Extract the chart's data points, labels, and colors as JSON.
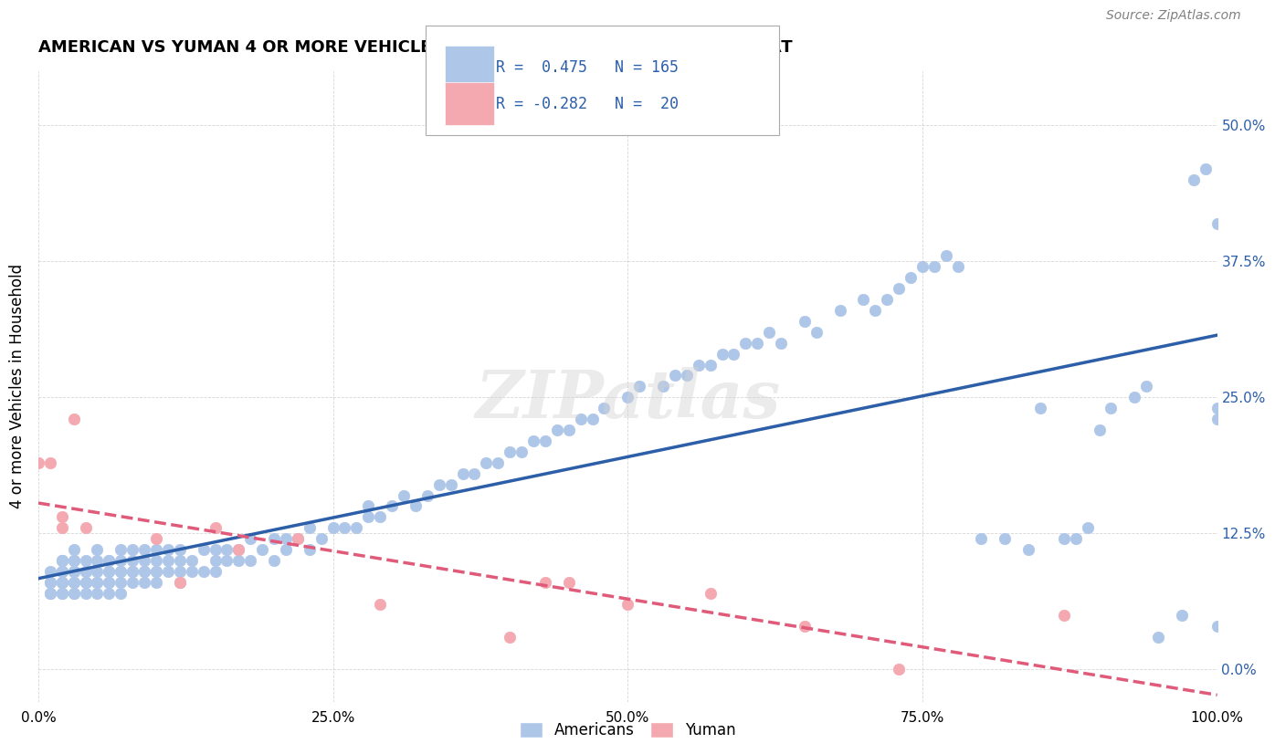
{
  "title": "AMERICAN VS YUMAN 4 OR MORE VEHICLES IN HOUSEHOLD CORRELATION CHART",
  "source": "Source: ZipAtlas.com",
  "ylabel": "4 or more Vehicles in Household",
  "xlabel": "",
  "xlim": [
    0,
    100
  ],
  "ylim": [
    -3,
    55
  ],
  "yticks": [
    0,
    12.5,
    25.0,
    37.5,
    50.0
  ],
  "xticks": [
    0,
    25,
    50,
    75,
    100
  ],
  "xtick_labels": [
    "0.0%",
    "25.0%",
    "50.0%",
    "75.0%",
    "100.0%"
  ],
  "ytick_labels": [
    "0.0%",
    "12.5%",
    "25.0%",
    "37.5%",
    "50.0%"
  ],
  "american_color": "#aec6e8",
  "yuman_color": "#f4a8b0",
  "trend_american_color": "#2c5fa8",
  "trend_yuman_color": "#e05a7a",
  "watermark": "ZIPatlas",
  "legend_R_american": "0.475",
  "legend_N_american": "165",
  "legend_R_yuman": "-0.282",
  "legend_N_yuman": "20",
  "american_x": [
    1,
    1,
    1,
    1,
    1,
    2,
    2,
    2,
    2,
    2,
    2,
    2,
    2,
    2,
    2,
    2,
    2,
    3,
    3,
    3,
    3,
    3,
    3,
    3,
    3,
    3,
    3,
    4,
    4,
    4,
    4,
    4,
    4,
    5,
    5,
    5,
    5,
    5,
    5,
    6,
    6,
    6,
    6,
    6,
    6,
    6,
    7,
    7,
    7,
    7,
    7,
    7,
    8,
    8,
    8,
    8,
    8,
    9,
    9,
    9,
    9,
    9,
    10,
    10,
    10,
    10,
    10,
    11,
    11,
    11,
    12,
    12,
    12,
    12,
    13,
    13,
    14,
    14,
    15,
    15,
    15,
    16,
    16,
    17,
    17,
    18,
    18,
    19,
    20,
    20,
    21,
    21,
    22,
    23,
    23,
    24,
    25,
    26,
    27,
    28,
    28,
    29,
    30,
    31,
    32,
    33,
    34,
    35,
    36,
    37,
    38,
    39,
    40,
    41,
    42,
    43,
    44,
    45,
    46,
    47,
    48,
    50,
    51,
    53,
    54,
    55,
    56,
    57,
    58,
    59,
    60,
    61,
    62,
    63,
    65,
    66,
    68,
    70,
    71,
    72,
    73,
    74,
    75,
    76,
    77,
    78,
    80,
    82,
    84,
    85,
    87,
    88,
    89,
    90,
    91,
    93,
    94,
    95,
    97,
    98,
    99,
    100,
    100,
    100,
    100
  ],
  "american_y": [
    7,
    7,
    8,
    8,
    9,
    7,
    7,
    8,
    8,
    8,
    9,
    9,
    9,
    9,
    10,
    10,
    10,
    7,
    7,
    8,
    8,
    9,
    9,
    9,
    10,
    10,
    11,
    7,
    8,
    8,
    9,
    9,
    10,
    7,
    8,
    8,
    9,
    10,
    11,
    7,
    8,
    8,
    9,
    9,
    10,
    10,
    7,
    8,
    9,
    9,
    10,
    11,
    8,
    9,
    9,
    10,
    11,
    8,
    9,
    9,
    10,
    11,
    8,
    9,
    9,
    10,
    11,
    9,
    10,
    11,
    8,
    9,
    10,
    11,
    9,
    10,
    9,
    11,
    9,
    10,
    11,
    10,
    11,
    10,
    11,
    10,
    12,
    11,
    10,
    12,
    11,
    12,
    12,
    11,
    13,
    12,
    13,
    13,
    13,
    14,
    15,
    14,
    15,
    16,
    15,
    16,
    17,
    17,
    18,
    18,
    19,
    19,
    20,
    20,
    21,
    21,
    22,
    22,
    23,
    23,
    24,
    25,
    26,
    26,
    27,
    27,
    28,
    28,
    29,
    29,
    30,
    30,
    31,
    30,
    32,
    31,
    33,
    34,
    33,
    34,
    35,
    36,
    37,
    37,
    38,
    37,
    12,
    12,
    11,
    24,
    12,
    12,
    13,
    22,
    24,
    25,
    26,
    3,
    5,
    45,
    46,
    23,
    24,
    41,
    4
  ],
  "yuman_x": [
    0,
    1,
    2,
    2,
    3,
    4,
    10,
    12,
    15,
    17,
    22,
    29,
    40,
    43,
    45,
    50,
    57,
    65,
    73,
    87
  ],
  "yuman_y": [
    19,
    19,
    14,
    13,
    23,
    13,
    12,
    8,
    13,
    11,
    12,
    6,
    3,
    8,
    8,
    6,
    7,
    4,
    0,
    5
  ]
}
